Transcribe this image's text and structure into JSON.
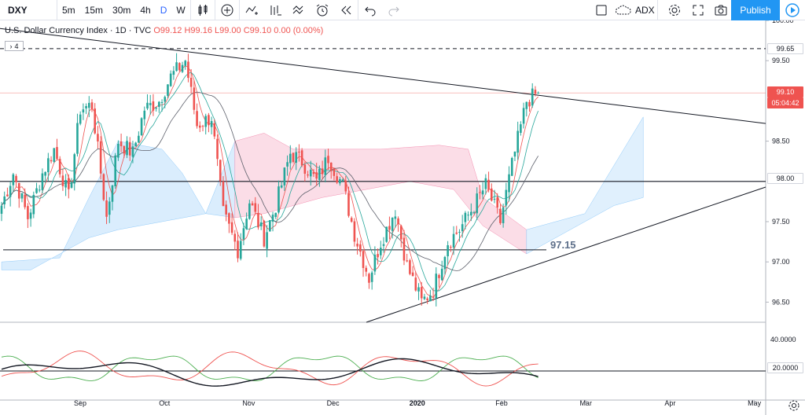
{
  "toolbar": {
    "symbol": "DXY",
    "intervals": [
      "5m",
      "15m",
      "30m",
      "4h",
      "D",
      "W"
    ],
    "active_interval": "D",
    "compare_label": "ADX",
    "publish_label": "Publish"
  },
  "legend": {
    "name": "U.S. Dollar Currency Index · 1D · TVC",
    "o": "O99.12",
    "h": "H99.16",
    "l": "L99.00",
    "c": "C99.10",
    "chg": "0.00 (0.00%)"
  },
  "collapse_count": "4",
  "price_labels": {
    "dashed": "99.65",
    "last": "99.10",
    "countdown": "05:04:42",
    "level": "98.00",
    "adx_level": "20.0000"
  },
  "annotation": "97.15",
  "colors": {
    "up": "#26a69a",
    "down": "#ef5350",
    "accent": "#2962ff",
    "publish": "#2196f3"
  },
  "chart_data": {
    "type": "candlestick",
    "symbol": "DXY",
    "price_axis": {
      "ticks": [
        "100.00",
        "99.50",
        "98.50",
        "97.50",
        "97.00",
        "96.50"
      ],
      "ylim": [
        96.25,
        100.0
      ]
    },
    "indicator_axis": {
      "ticks": [
        "40.0000"
      ]
    },
    "time_axis": [
      "Sep",
      "Oct",
      "Nov",
      "Dec",
      "2020",
      "Feb",
      "Mar",
      "Apr",
      "May"
    ],
    "horizontal_levels": [
      99.65,
      98.0,
      97.15
    ],
    "last_price": 99.1,
    "close_path": [
      [
        0,
        97.7
      ],
      [
        4,
        98.1
      ],
      [
        9,
        97.55
      ],
      [
        14,
        98.1
      ],
      [
        18,
        98.4
      ],
      [
        23,
        97.8
      ],
      [
        27,
        98.9
      ],
      [
        31,
        98.95
      ],
      [
        36,
        97.55
      ],
      [
        40,
        98.5
      ],
      [
        45,
        98.35
      ],
      [
        49,
        98.9
      ],
      [
        54,
        99.0
      ],
      [
        58,
        99.3
      ],
      [
        63,
        99.5
      ],
      [
        67,
        98.7
      ],
      [
        72,
        98.8
      ],
      [
        76,
        97.6
      ],
      [
        81,
        97.15
      ],
      [
        85,
        97.75
      ],
      [
        90,
        97.3
      ],
      [
        94,
        97.7
      ],
      [
        99,
        98.35
      ],
      [
        103,
        98.25
      ],
      [
        108,
        98.0
      ],
      [
        112,
        98.3
      ],
      [
        117,
        97.95
      ],
      [
        121,
        97.35
      ],
      [
        126,
        96.8
      ],
      [
        130,
        97.25
      ],
      [
        135,
        97.65
      ],
      [
        139,
        96.95
      ],
      [
        144,
        96.5
      ],
      [
        148,
        96.65
      ],
      [
        153,
        97.25
      ],
      [
        157,
        97.4
      ],
      [
        162,
        97.7
      ],
      [
        166,
        97.95
      ],
      [
        171,
        97.5
      ],
      [
        175,
        98.2
      ],
      [
        180,
        99.0
      ],
      [
        184,
        99.1
      ]
    ]
  }
}
